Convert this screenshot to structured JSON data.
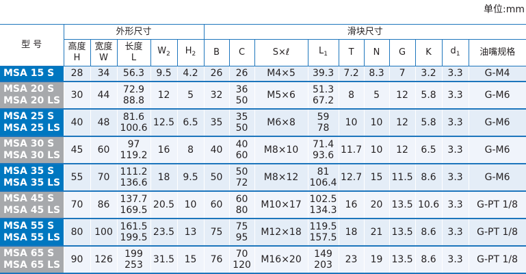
{
  "unit_label": "单位:mm",
  "header": {
    "model": "型 号",
    "group_outer": "外形尺寸",
    "group_block": "滑块尺寸",
    "columns": [
      {
        "main": "高度",
        "second": "H"
      },
      {
        "main": "宽度",
        "second": "W"
      },
      {
        "main": "长度",
        "second": "L"
      },
      {
        "main": "W",
        "sub": "2"
      },
      {
        "main": "H",
        "sub": "2"
      },
      {
        "main": "B"
      },
      {
        "main": "C"
      },
      {
        "main": "S×ℓ"
      },
      {
        "main": "L",
        "sub": "1"
      },
      {
        "main": "T"
      },
      {
        "main": "N"
      },
      {
        "main": "G"
      },
      {
        "main": "K"
      },
      {
        "main": "d",
        "sub": "1"
      },
      {
        "main": "油嘴规格"
      }
    ]
  },
  "colors": {
    "accent_blue": "#0077c0",
    "model_gray": "#a7a9ac",
    "line_blue": "#1c75bc"
  },
  "rows": [
    {
      "style": "blue",
      "model": [
        "MSA 15 S"
      ],
      "cells": [
        [
          "28"
        ],
        [
          "34"
        ],
        [
          "56.3"
        ],
        [
          "9.5"
        ],
        [
          "4.2"
        ],
        [
          "26"
        ],
        [
          "26"
        ],
        [
          "M4×5"
        ],
        [
          "39.3"
        ],
        [
          "7.2"
        ],
        [
          "8.3"
        ],
        [
          "7"
        ],
        [
          "3.2"
        ],
        [
          "3.3"
        ],
        [
          "G-M4"
        ]
      ]
    },
    {
      "style": "gray",
      "model": [
        "MSA 20 S",
        "MSA 20 LS"
      ],
      "cells": [
        [
          "30"
        ],
        [
          "44"
        ],
        [
          "72.9",
          "88.8"
        ],
        [
          "12"
        ],
        [
          "5"
        ],
        [
          "32"
        ],
        [
          "36",
          "50"
        ],
        [
          "M5×6"
        ],
        [
          "51.3",
          "67.2"
        ],
        [
          "8"
        ],
        [
          "5"
        ],
        [
          "12"
        ],
        [
          "5.8"
        ],
        [
          "3.3"
        ],
        [
          "G-M6"
        ]
      ]
    },
    {
      "style": "blue",
      "model": [
        "MSA 25 S",
        "MSA 25 LS"
      ],
      "cells": [
        [
          "40"
        ],
        [
          "48"
        ],
        [
          "81.6",
          "100.6"
        ],
        [
          "12.5"
        ],
        [
          "6.5"
        ],
        [
          "35"
        ],
        [
          "35",
          "50"
        ],
        [
          "M6×8"
        ],
        [
          "59",
          "78"
        ],
        [
          "10"
        ],
        [
          "10"
        ],
        [
          "12"
        ],
        [
          "5.8"
        ],
        [
          "3.3"
        ],
        [
          "G-M6"
        ]
      ]
    },
    {
      "style": "gray",
      "model": [
        "MSA 30 S",
        "MSA 30 LS"
      ],
      "cells": [
        [
          "45"
        ],
        [
          "60"
        ],
        [
          "97",
          "119.2"
        ],
        [
          "16"
        ],
        [
          "8"
        ],
        [
          "40"
        ],
        [
          "40",
          "60"
        ],
        [
          "M8×10"
        ],
        [
          "71.4",
          "93.6"
        ],
        [
          "11.7"
        ],
        [
          "10"
        ],
        [
          "12"
        ],
        [
          "6.5"
        ],
        [
          "3.3"
        ],
        [
          "G-M6"
        ]
      ]
    },
    {
      "style": "blue",
      "model": [
        "MSA 35 S",
        "MSA 35 LS"
      ],
      "cells": [
        [
          "55"
        ],
        [
          "70"
        ],
        [
          "111.2",
          "136.6"
        ],
        [
          "18"
        ],
        [
          "9.5"
        ],
        [
          "50"
        ],
        [
          "50",
          "72"
        ],
        [
          "M8×12"
        ],
        [
          "81",
          "106.4"
        ],
        [
          "12.7"
        ],
        [
          "15"
        ],
        [
          "11.5"
        ],
        [
          "8.6"
        ],
        [
          "3.3"
        ],
        [
          "G-M6"
        ]
      ]
    },
    {
      "style": "gray",
      "model": [
        "MSA 45 S",
        "MSA 45 LS"
      ],
      "cells": [
        [
          "70"
        ],
        [
          "86"
        ],
        [
          "137.7",
          "169.5"
        ],
        [
          "20.5"
        ],
        [
          "10"
        ],
        [
          "60"
        ],
        [
          "60",
          "80"
        ],
        [
          "M10×17"
        ],
        [
          "102.5",
          "134.3"
        ],
        [
          "16"
        ],
        [
          "20"
        ],
        [
          "13.5"
        ],
        [
          "10.6"
        ],
        [
          "3.3"
        ],
        [
          "G-PT 1/8"
        ]
      ]
    },
    {
      "style": "blue",
      "model": [
        "MSA 55 S",
        "MSA 55 LS"
      ],
      "cells": [
        [
          "80"
        ],
        [
          "100"
        ],
        [
          "161.5",
          "199.5"
        ],
        [
          "23.5"
        ],
        [
          "13"
        ],
        [
          "75"
        ],
        [
          "75",
          "95"
        ],
        [
          "M12×18"
        ],
        [
          "119.5",
          "157.5"
        ],
        [
          "18"
        ],
        [
          "21"
        ],
        [
          "13.5"
        ],
        [
          "8.6"
        ],
        [
          "3.3"
        ],
        [
          "G-PT 1/8"
        ]
      ]
    },
    {
      "style": "gray",
      "model": [
        "MSA 65 S",
        "MSA 65 LS"
      ],
      "cells": [
        [
          "90"
        ],
        [
          "126"
        ],
        [
          "199",
          "253"
        ],
        [
          "31.5"
        ],
        [
          "15"
        ],
        [
          "76"
        ],
        [
          "70",
          "120"
        ],
        [
          "M16×20"
        ],
        [
          "149",
          "203"
        ],
        [
          "23"
        ],
        [
          "19"
        ],
        [
          "13.5"
        ],
        [
          "8.6"
        ],
        [
          "3.3"
        ],
        [
          "G-PT 1/8"
        ]
      ]
    }
  ]
}
